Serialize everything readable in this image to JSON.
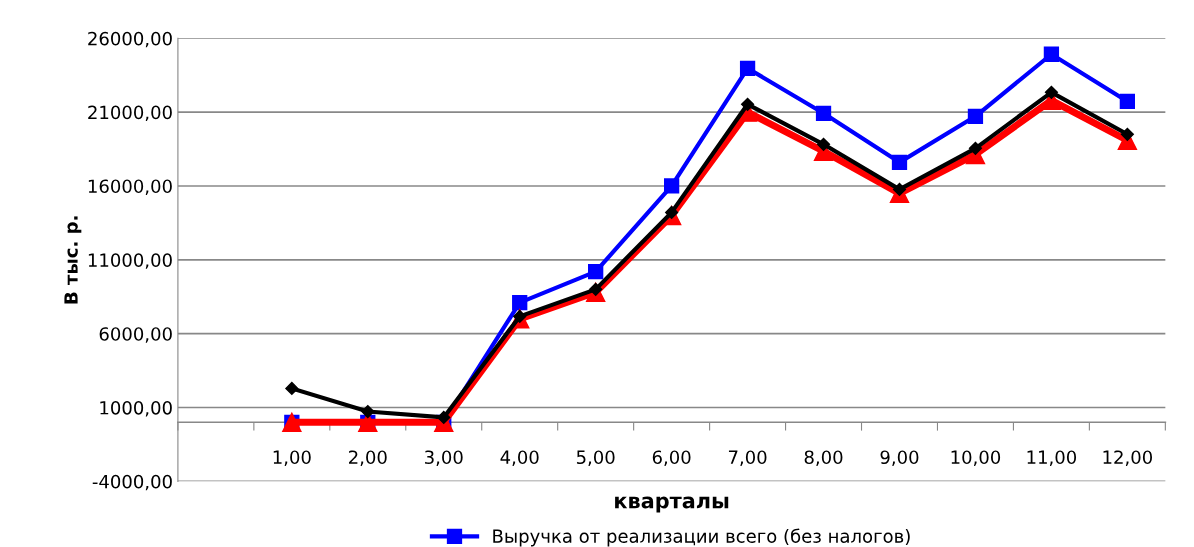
{
  "chart_data": {
    "type": "line",
    "xlabel": "кварталы",
    "ylabel": "В тыс. р.",
    "categories": [
      "1,00",
      "2,00",
      "3,00",
      "4,00",
      "5,00",
      "6,00",
      "7,00",
      "8,00",
      "9,00",
      "10,00",
      "11,00",
      "12,00"
    ],
    "series": [
      {
        "name": "Выручка от реализации всего (без налогов)",
        "color": "#0000ff",
        "marker": "square",
        "values": [
          0,
          0,
          0,
          8100,
          10200,
          16000,
          23970,
          20920,
          17600,
          20720,
          24920,
          21730
        ]
      },
      {
        "color": "#ff0000",
        "marker": "triangle",
        "values": [
          0,
          0,
          0,
          7000,
          8800,
          14000,
          21000,
          18350,
          15500,
          18130,
          21800,
          19090
        ]
      },
      {
        "color": "#000000",
        "marker": "diamond",
        "values": [
          2290,
          730,
          330,
          7170,
          9000,
          14210,
          21530,
          18820,
          15770,
          18550,
          22340,
          19500
        ]
      }
    ],
    "ylim": [
      -4000,
      26000
    ],
    "yticks": [
      {
        "value": -4000,
        "label": "-4000,00"
      },
      {
        "value": 1000,
        "label": "1000,00"
      },
      {
        "value": 6000,
        "label": "6000,00"
      },
      {
        "value": 11000,
        "label": "11000,00"
      },
      {
        "value": 16000,
        "label": "16000,00"
      },
      {
        "value": 21000,
        "label": "21000,00"
      },
      {
        "value": 26000,
        "label": "26000,00"
      }
    ],
    "grid": "y",
    "legend": "bottom",
    "line_style": "solid"
  }
}
